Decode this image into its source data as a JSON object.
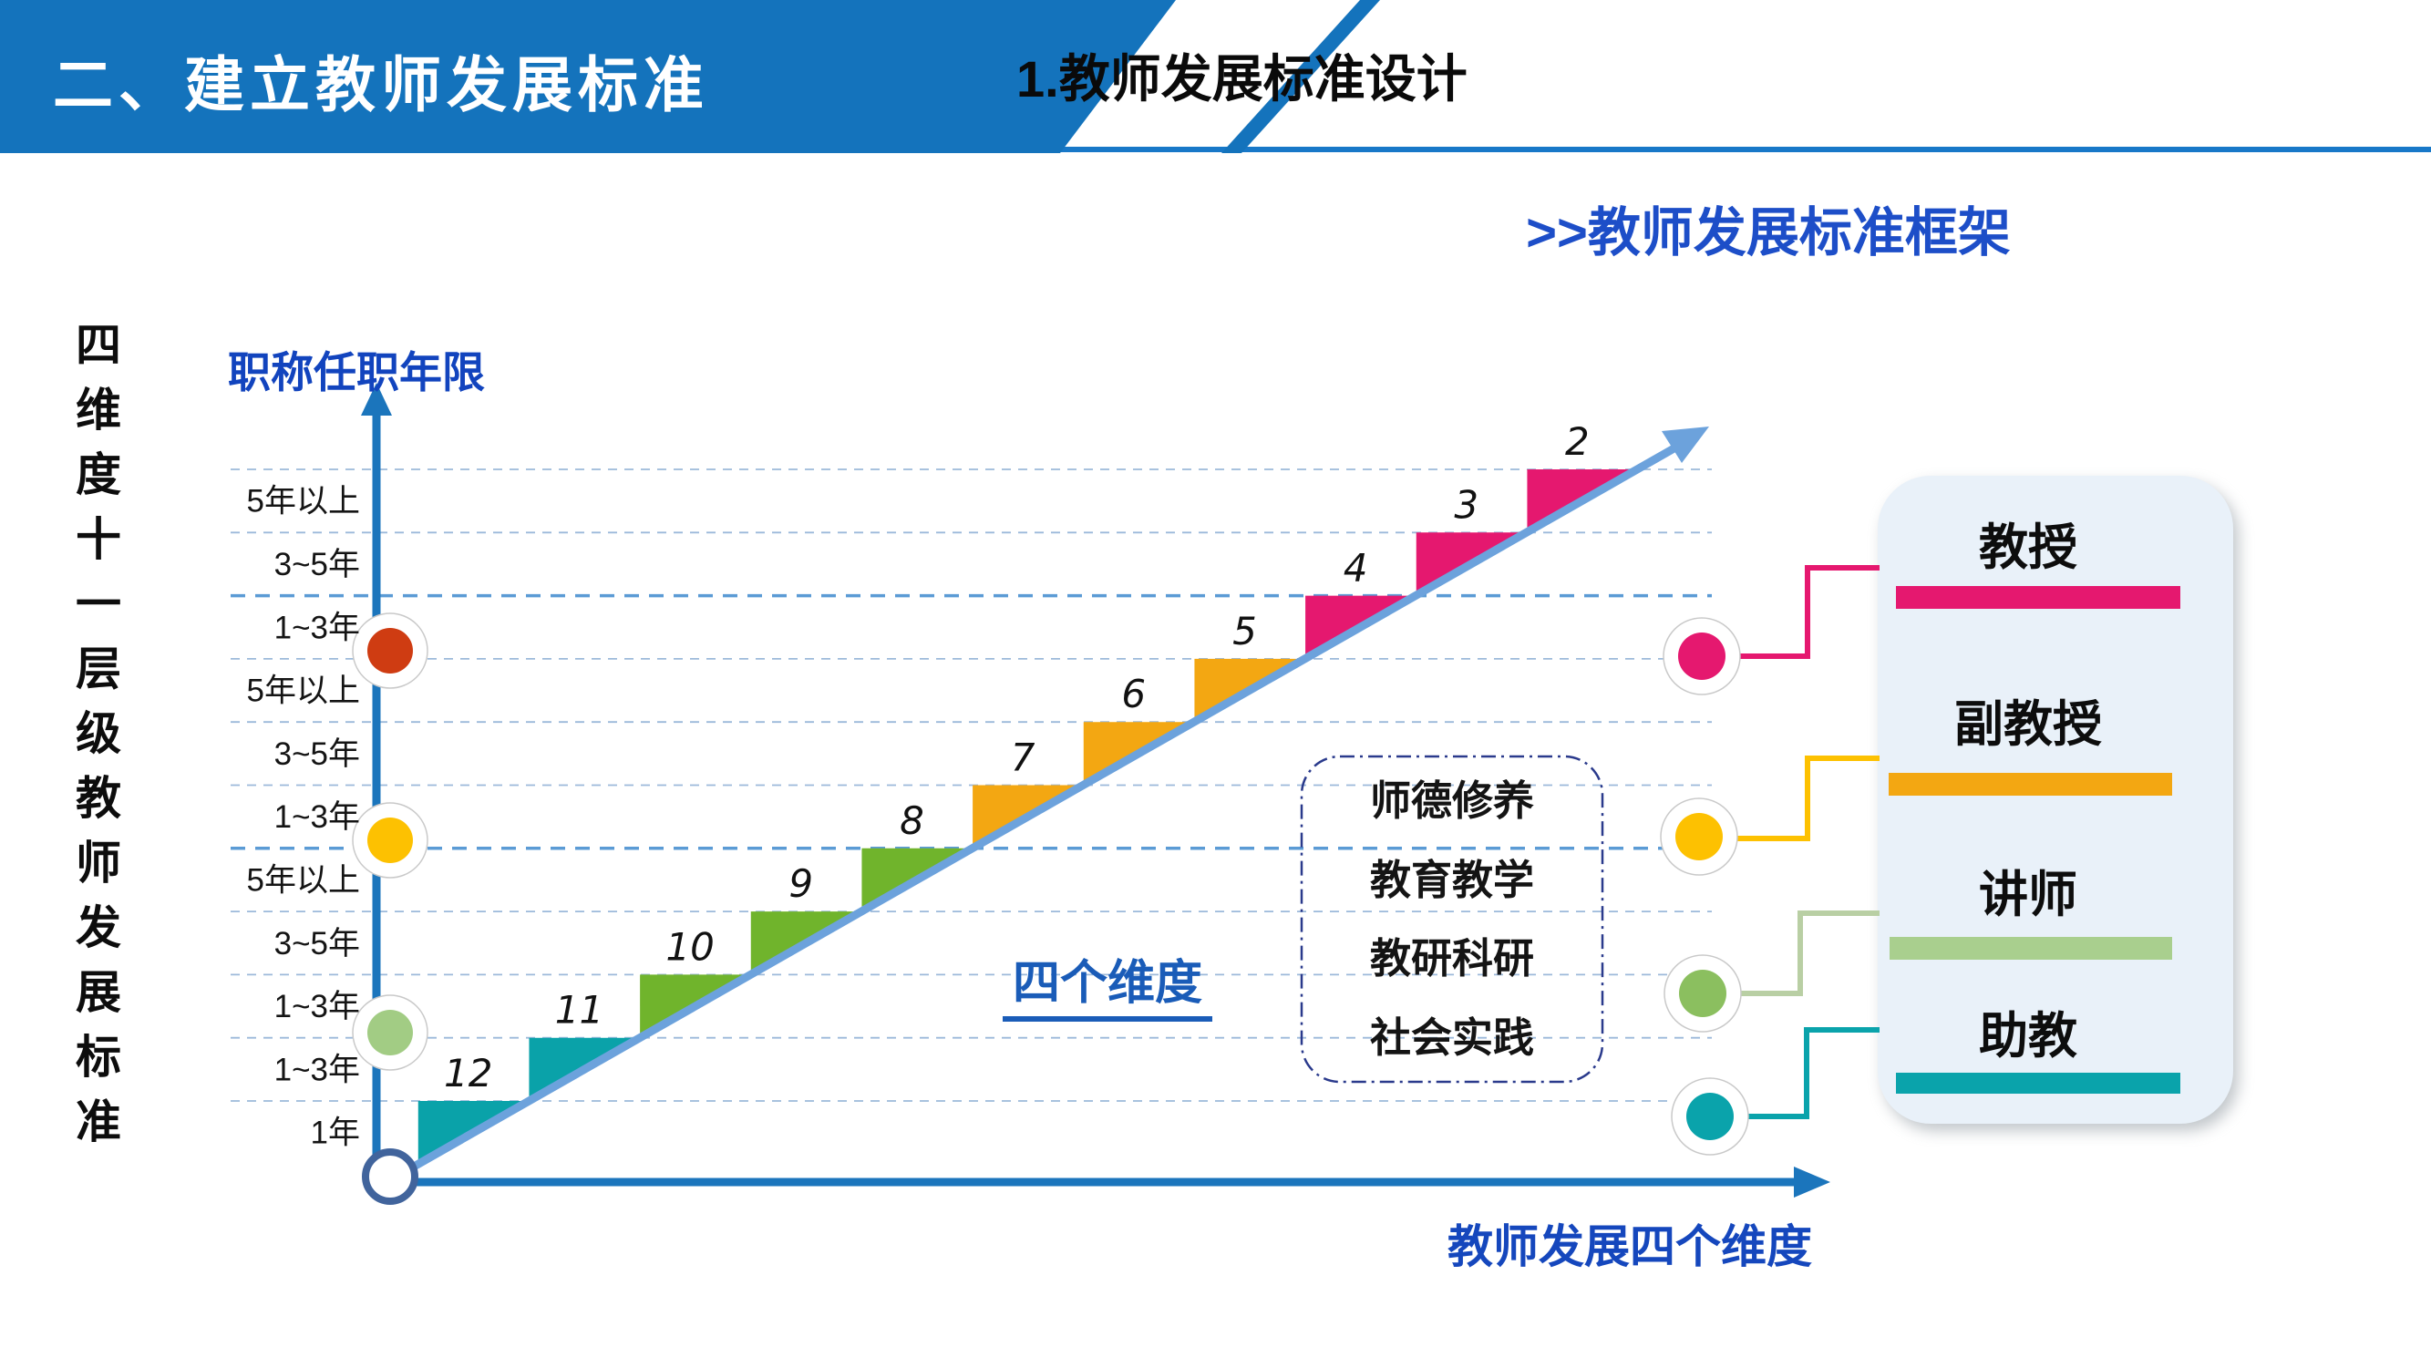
{
  "banner": {
    "title": "二、建立教师发展标准"
  },
  "header": {
    "subtitle": "1.教师发展标准设计",
    "frame_label": ">>教师发展标准框架"
  },
  "left_vertical_label": "四维度十一层级教师发展标准",
  "chart": {
    "y_axis_title": "职称任职年限",
    "x_axis_label": "教师发展四个维度",
    "dimensions_label": "四个维度",
    "ticks": [
      "5年以上",
      "3~5年",
      "1~3年",
      "5年以上",
      "3~5年",
      "1~3年",
      "5年以上",
      "3~5年",
      "1~3年",
      "1~3年",
      "1年"
    ],
    "steps": [
      {
        "number": "2",
        "rank": "教授",
        "color": "#e5186f"
      },
      {
        "number": "3",
        "rank": "教授",
        "color": "#e5186f"
      },
      {
        "number": "4",
        "rank": "教授",
        "color": "#e5186f"
      },
      {
        "number": "5",
        "rank": "副教授",
        "color": "#f3a712"
      },
      {
        "number": "6",
        "rank": "副教授",
        "color": "#f3a712"
      },
      {
        "number": "7",
        "rank": "副教授",
        "color": "#f3a712"
      },
      {
        "number": "8",
        "rank": "讲师",
        "color": "#70b42c"
      },
      {
        "number": "9",
        "rank": "讲师",
        "color": "#70b42c"
      },
      {
        "number": "10",
        "rank": "讲师",
        "color": "#70b42c"
      },
      {
        "number": "11",
        "rank": "助教",
        "color": "#0aa2a9"
      },
      {
        "number": "12",
        "rank": "助教",
        "color": "#0aa2a9"
      }
    ],
    "axis_dots": [
      {
        "name": "professor-boundary-dot",
        "color": "#cf3c12"
      },
      {
        "name": "associate-boundary-dot",
        "color": "#fdc101"
      },
      {
        "name": "lecturer-boundary-dot",
        "color": "#a2cc84"
      }
    ],
    "right_dots": [
      {
        "name": "professor-dot",
        "color": "#e5186f"
      },
      {
        "name": "associate-dot",
        "color": "#fdc101"
      },
      {
        "name": "lecturer-dot",
        "color": "#8bbf5f"
      },
      {
        "name": "assistant-dot",
        "color": "#0aa3ab"
      }
    ],
    "connector_colors": {
      "professor": "#e5186f",
      "associate": "#fdc101",
      "lecturer": "#b9cfa4",
      "assistant": "#0aa3ab"
    }
  },
  "dimension_box": {
    "items": [
      "师德修养",
      "教育教学",
      "教研科研",
      "社会实践"
    ]
  },
  "rank_panel": {
    "ranks": [
      {
        "label": "教授",
        "color": "#e5186f"
      },
      {
        "label": "副教授",
        "color": "#f3a712"
      },
      {
        "label": "讲师",
        "color": "#a9cf8e"
      },
      {
        "label": "助教",
        "color": "#0aa3ab"
      }
    ]
  },
  "colors": {
    "banner_blue": "#1473bc",
    "axis_blue": "#1b75bc",
    "diagonal_blue": "#6ca2dc",
    "gridline_thin": "#9cb9da",
    "gridline_bold": "#5b9bd5",
    "panel_bg": "#e9f1f9",
    "dashed_box_border": "#2a3a8c"
  }
}
